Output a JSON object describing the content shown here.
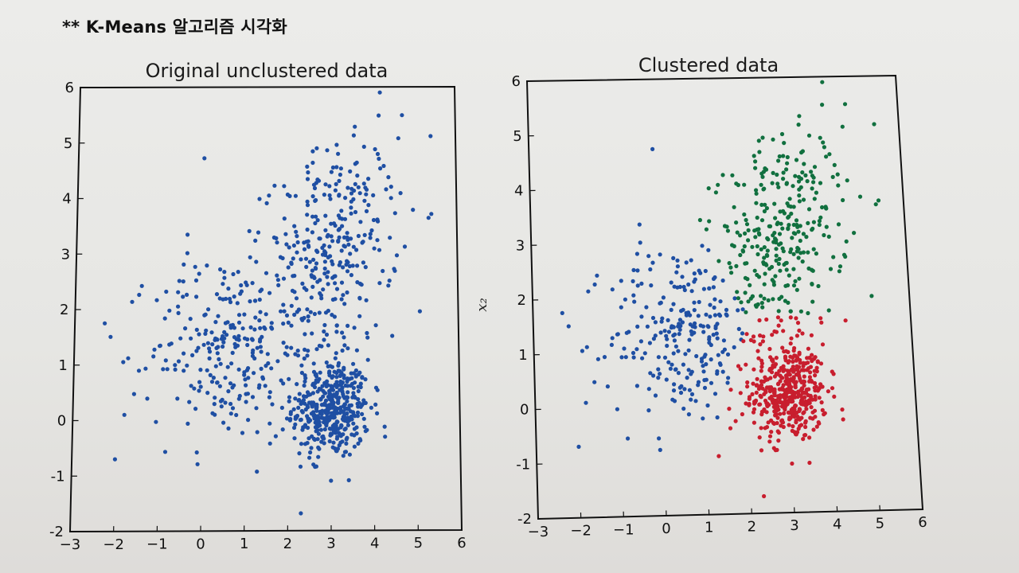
{
  "header": {
    "title": "** K-Means 알고리즘 시각화"
  },
  "colors": {
    "blue": "#1f4fa3",
    "green": "#11703f",
    "red": "#c81e2e",
    "frame": "#111111"
  },
  "chart_data": [
    {
      "type": "scatter",
      "title": "Original unclustered data",
      "xlabel": "",
      "ylabel": "",
      "xlim": [
        -3,
        6
      ],
      "ylim": [
        -2,
        6
      ],
      "xticks": [
        "−3",
        "−2",
        "−1",
        "0",
        "1",
        "2",
        "3",
        "4",
        "5",
        "6"
      ],
      "yticks": [
        "-2",
        "-1",
        "0",
        "1",
        "2",
        "3",
        "4",
        "5",
        "6"
      ],
      "grid": false,
      "legend": "none",
      "series": [
        {
          "color": "#1f4fa3",
          "n_points": 1000,
          "clusters": [
            {
              "center": [
                3.0,
                0.2
              ],
              "spread": [
                0.45,
                0.45
              ]
            },
            {
              "center": [
                3.0,
                3.0
              ],
              "spread": [
                0.8,
                0.95
              ]
            },
            {
              "center": [
                0.5,
                1.3
              ],
              "spread": [
                0.85,
                0.85
              ]
            }
          ],
          "annotated_points": [
            [
              -2.3,
              1.75
            ],
            [
              -2.0,
              -0.7
            ],
            [
              -1.8,
              0.1
            ],
            [
              4.2,
              5.9
            ],
            [
              5.1,
              1.95
            ],
            [
              0.0,
              4.72
            ],
            [
              3.0,
              -1.1
            ]
          ]
        }
      ]
    },
    {
      "type": "scatter",
      "title": "Clustered data",
      "xlabel": "",
      "ylabel": "x₂",
      "xlim": [
        -3,
        6
      ],
      "ylim": [
        -2,
        6
      ],
      "xticks": [
        "−3",
        "−2",
        "−1",
        "0",
        "1",
        "2",
        "3",
        "4",
        "5",
        "6"
      ],
      "yticks": [
        "-2",
        "-1",
        "0",
        "1",
        "2",
        "3",
        "4",
        "5",
        "6"
      ],
      "grid": false,
      "legend": "none",
      "series": [
        {
          "color": "#1f4fa3",
          "center": [
            0.5,
            1.3
          ]
        },
        {
          "color": "#11703f",
          "center": [
            3.0,
            3.0
          ]
        },
        {
          "color": "#c81e2e",
          "center": [
            3.0,
            0.2
          ]
        }
      ]
    }
  ]
}
